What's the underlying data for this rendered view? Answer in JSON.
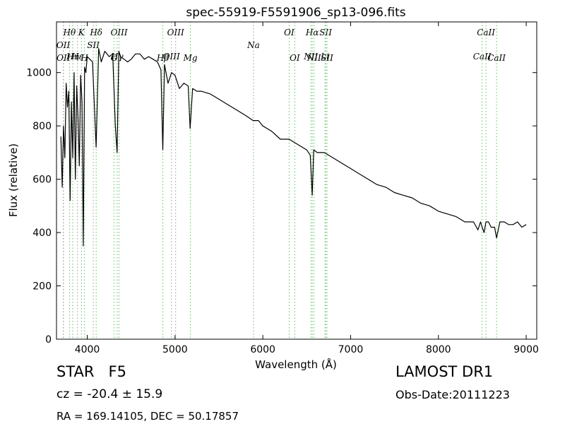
{
  "chart_data": {
    "type": "line",
    "title": "spec-55919-F5591906_sp13-096.fits",
    "xlabel": "Wavelength (Å)",
    "ylabel": "Flux (relative)",
    "xlim": [
      3650,
      9120
    ],
    "ylim": [
      0,
      1190
    ],
    "xticks": [
      4000,
      5000,
      6000,
      7000,
      8000,
      9000
    ],
    "yticks": [
      0,
      200,
      400,
      600,
      800,
      1000
    ],
    "grid": false,
    "series": [
      {
        "color": "#000000",
        "x": [
          3700,
          3715,
          3730,
          3745,
          3760,
          3775,
          3790,
          3805,
          3820,
          3835,
          3850,
          3865,
          3880,
          3895,
          3910,
          3925,
          3940,
          3955,
          3970,
          3985,
          4000,
          4030,
          4060,
          4101,
          4130,
          4160,
          4200,
          4250,
          4290,
          4320,
          4340,
          4360,
          4380,
          4420,
          4460,
          4500,
          4550,
          4600,
          4650,
          4700,
          4750,
          4800,
          4840,
          4861,
          4880,
          4920,
          4960,
          5000,
          5050,
          5100,
          5150,
          5172,
          5200,
          5250,
          5300,
          5400,
          5500,
          5600,
          5700,
          5800,
          5890,
          5950,
          6000,
          6100,
          6200,
          6300,
          6400,
          6500,
          6540,
          6563,
          6580,
          6620,
          6700,
          6800,
          6900,
          7000,
          7100,
          7200,
          7300,
          7400,
          7500,
          7600,
          7700,
          7800,
          7900,
          8000,
          8100,
          8200,
          8300,
          8400,
          8450,
          8480,
          8498,
          8520,
          8542,
          8570,
          8600,
          8640,
          8662,
          8700,
          8750,
          8800,
          8850,
          8900,
          8950,
          9000
        ],
        "y": [
          760,
          570,
          800,
          680,
          960,
          870,
          930,
          520,
          890,
          680,
          1000,
          600,
          950,
          830,
          650,
          990,
          890,
          350,
          1020,
          1000,
          1060,
          1050,
          1040,
          720,
          1090,
          1040,
          1080,
          1060,
          1070,
          800,
          700,
          1080,
          1060,
          1050,
          1040,
          1050,
          1070,
          1070,
          1050,
          1060,
          1050,
          1040,
          1010,
          710,
          1030,
          960,
          1000,
          990,
          940,
          960,
          950,
          790,
          940,
          930,
          930,
          920,
          900,
          880,
          860,
          840,
          820,
          820,
          800,
          780,
          750,
          750,
          730,
          710,
          690,
          540,
          710,
          700,
          700,
          680,
          660,
          640,
          620,
          600,
          580,
          570,
          550,
          540,
          530,
          510,
          500,
          480,
          470,
          460,
          440,
          440,
          410,
          440,
          420,
          400,
          440,
          440,
          420,
          420,
          380,
          440,
          440,
          430,
          430,
          440,
          420,
          430
        ]
      }
    ],
    "line_markers": [
      {
        "label": "Hθ",
        "x": 3798,
        "row": 1
      },
      {
        "label": "OII",
        "x": 3727,
        "row": 2
      },
      {
        "label": "OII",
        "x": 3729,
        "row": 4
      },
      {
        "label": "Hη",
        "x": 3835,
        "row": 3
      },
      {
        "label": "K",
        "x": 3934,
        "row": 1
      },
      {
        "label": "Hε",
        "x": 3889,
        "row": 3
      },
      {
        "label": "SII",
        "x": 4069,
        "row": 2
      },
      {
        "label": "H",
        "x": 3969,
        "row": 4
      },
      {
        "label": "Hδ",
        "x": 4102,
        "row": 1
      },
      {
        "label": "OIII",
        "x": 4363,
        "row": 1
      },
      {
        "label": "Hγ",
        "x": 4341,
        "row": 3
      },
      {
        "label": "G",
        "x": 4305,
        "row": 4
      },
      {
        "label": "OIII",
        "x": 5007,
        "row": 1
      },
      {
        "label": "OIII",
        "x": 4959,
        "row": 3
      },
      {
        "label": "Hβ",
        "x": 4861,
        "row": 4
      },
      {
        "label": "Mg",
        "x": 5175,
        "row": 4
      },
      {
        "label": "Na",
        "x": 5894,
        "row": 2
      },
      {
        "label": "OI",
        "x": 6300,
        "row": 1
      },
      {
        "label": "OI",
        "x": 6364,
        "row": 4
      },
      {
        "label": "Hα",
        "x": 6563,
        "row": 1
      },
      {
        "label": "SII",
        "x": 6716,
        "row": 1
      },
      {
        "label": "NII",
        "x": 6548,
        "row": 3
      },
      {
        "label": "NII",
        "x": 6583,
        "row": 4
      },
      {
        "label": "Li",
        "x": 6708,
        "row": 3
      },
      {
        "label": "SII",
        "x": 6731,
        "row": 4
      },
      {
        "label": "CaII",
        "x": 8542,
        "row": 1
      },
      {
        "label": "CaII",
        "x": 8498,
        "row": 3
      },
      {
        "label": "CaII",
        "x": 8662,
        "row": 4
      }
    ],
    "marker_color": "#5fbf5f"
  },
  "info": {
    "object_class": "STAR",
    "subclass": "F5",
    "cz": "cz = -20.4 ± 15.9",
    "radec": "RA = 169.14105, DEC = 50.17857",
    "survey": "LAMOST DR1",
    "obs_date": "Obs-Date:20111223"
  }
}
